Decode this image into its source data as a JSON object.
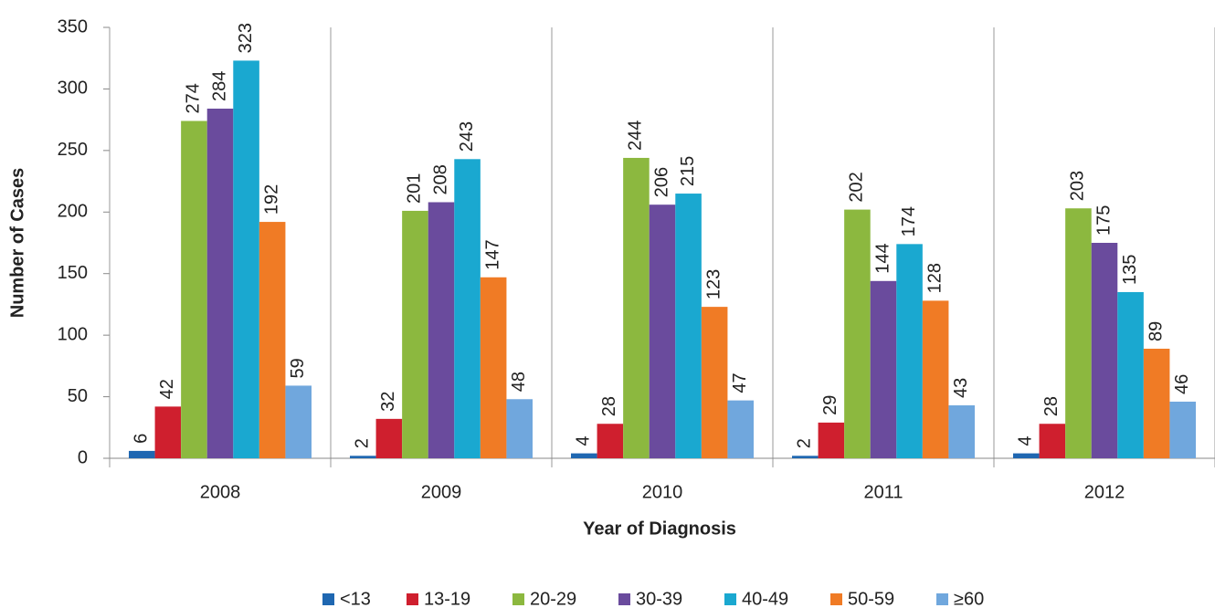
{
  "chart_data": {
    "type": "bar",
    "x_label": "Year of Diagnosis",
    "y_label": "Number of Cases",
    "categories": [
      "2008",
      "2009",
      "2010",
      "2011",
      "2012"
    ],
    "series": [
      {
        "name": "<13",
        "color": "#1f67b1",
        "values": [
          6,
          2,
          4,
          2,
          4
        ]
      },
      {
        "name": "13-19",
        "color": "#cf1f2e",
        "values": [
          42,
          32,
          28,
          29,
          28
        ]
      },
      {
        "name": "20-29",
        "color": "#8cb83f",
        "values": [
          274,
          201,
          244,
          202,
          203
        ]
      },
      {
        "name": "30-39",
        "color": "#6a4b9d",
        "values": [
          284,
          208,
          206,
          144,
          175
        ]
      },
      {
        "name": "40-49",
        "color": "#1aa8d0",
        "values": [
          323,
          243,
          215,
          174,
          135
        ]
      },
      {
        "name": "50-59",
        "color": "#f07b25",
        "values": [
          192,
          147,
          123,
          128,
          89
        ]
      },
      {
        "name": "≥60",
        "color": "#70a7dd",
        "values": [
          59,
          48,
          47,
          43,
          46
        ]
      }
    ],
    "ylim": [
      0,
      350
    ],
    "yticks": [
      0,
      50,
      100,
      150,
      200,
      250,
      300,
      350
    ],
    "legend": "bottom"
  }
}
